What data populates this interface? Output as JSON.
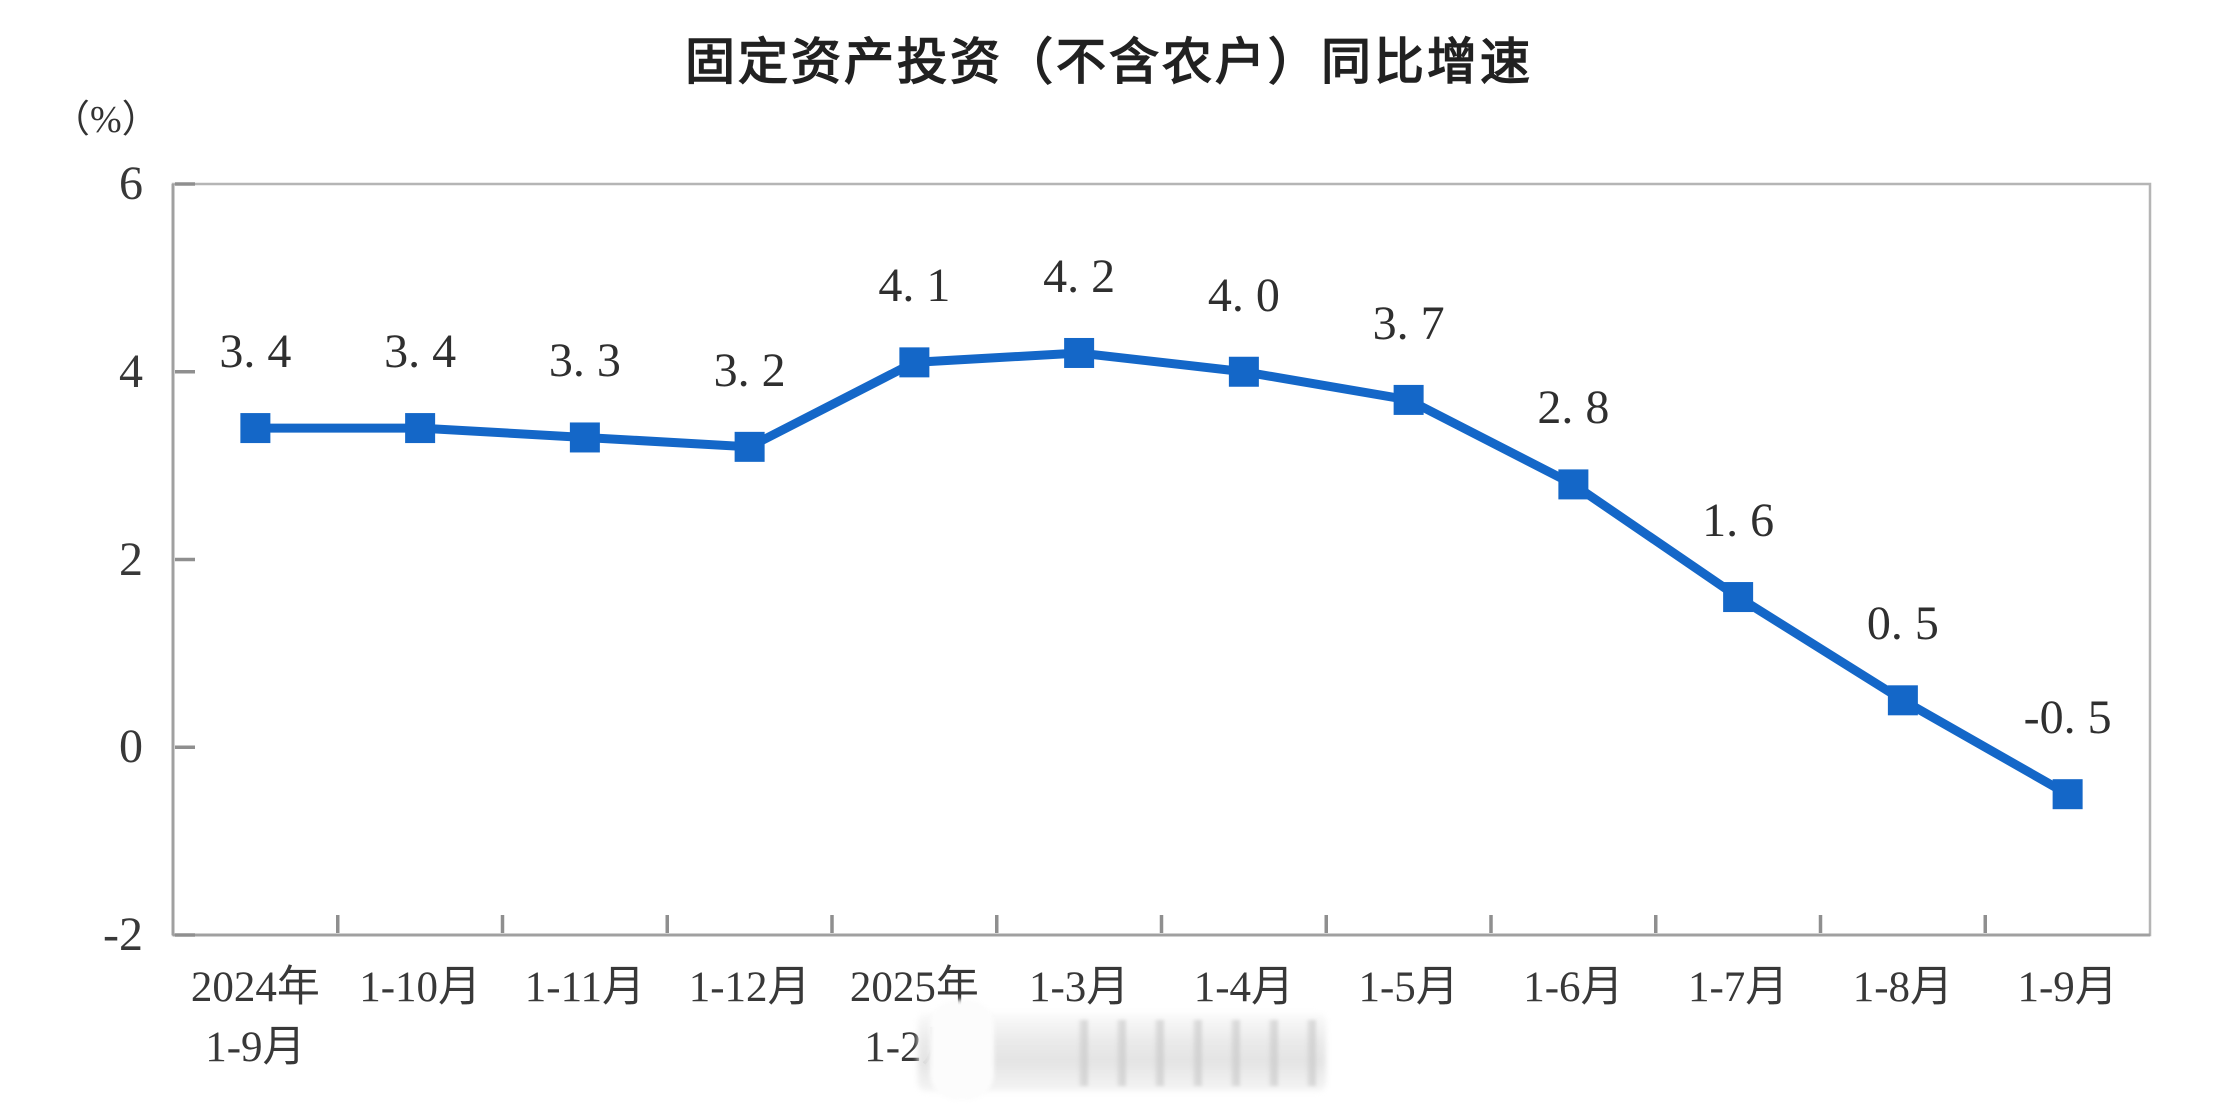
{
  "chart_data": {
    "type": "line",
    "title": "固定资产投资（不含农户）同比增速",
    "unit_label": "（%）",
    "categories": [
      [
        "2024年",
        "1-9月"
      ],
      [
        "1-10月"
      ],
      [
        "1-11月"
      ],
      [
        "1-12月"
      ],
      [
        "2025年",
        "1-2月"
      ],
      [
        "1-3月"
      ],
      [
        "1-4月"
      ],
      [
        "1-5月"
      ],
      [
        "1-6月"
      ],
      [
        "1-7月"
      ],
      [
        "1-8月"
      ],
      [
        "1-9月"
      ]
    ],
    "values": [
      3.4,
      3.4,
      3.3,
      3.2,
      4.1,
      4.2,
      4.0,
      3.7,
      2.8,
      1.6,
      0.5,
      -0.5
    ],
    "point_labels": [
      "3. 4",
      "3. 4",
      "3. 3",
      "3. 2",
      "4. 1",
      "4. 2",
      "4. 0",
      "3. 7",
      "2. 8",
      "1. 6",
      "0. 5",
      "-0. 5"
    ],
    "y_ticks": [
      6,
      4,
      2,
      0,
      -2
    ],
    "ylim": [
      -2,
      6
    ],
    "grid": false,
    "legend": "none",
    "xlabel": "",
    "ylabel": "（%）",
    "line_color": "#1467c8",
    "marker": "square",
    "label_color": "#2f2f2f",
    "tick_label_color": "#383838",
    "axis_color": "#b5b5b5",
    "tick_color": "#8f8f8f",
    "note_smudge": "watermark partially erased over 1-2月 label"
  }
}
